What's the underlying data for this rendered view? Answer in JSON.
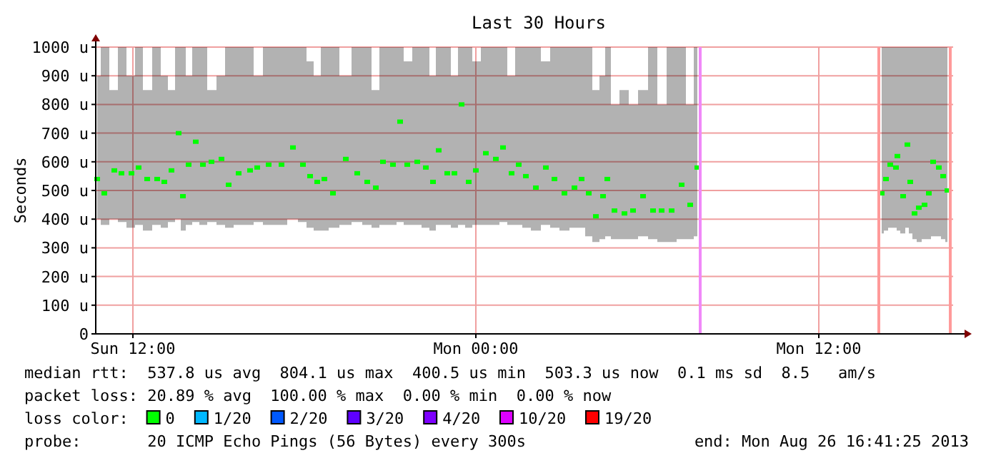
{
  "chart_data": {
    "type": "scatter",
    "title": "Last 30 Hours",
    "ylabel": "Seconds",
    "legend_title": "loss color:",
    "legend": "bottom",
    "grid": true,
    "marker": "square",
    "xlim": [
      "2013-08-25T10:42",
      "2013-08-26T16:42"
    ],
    "xticks": [
      {
        "value": "2013-08-25T12:00",
        "label": "Sun 12:00"
      },
      {
        "value": "2013-08-26T00:00",
        "label": "Mon 00:00"
      },
      {
        "value": "2013-08-26T12:00",
        "label": "Mon 12:00"
      }
    ],
    "ylim": [
      0,
      1000
    ],
    "yticks": [
      0,
      {
        "value": 100,
        "label": "100 u"
      },
      {
        "value": 200,
        "label": "200 u"
      },
      {
        "value": 300,
        "label": "300 u"
      },
      {
        "value": 400,
        "label": "400 u"
      },
      {
        "value": 500,
        "label": "500 u"
      },
      {
        "value": 600,
        "label": "600 u"
      },
      {
        "value": 700,
        "label": "700 u"
      },
      {
        "value": 800,
        "label": "800 u"
      },
      {
        "value": 900,
        "label": "900 u"
      },
      {
        "value": 1000,
        "label": "1000 u"
      }
    ],
    "series": [
      {
        "name": "0",
        "color": "#00ff00",
        "x": [
          "2013-08-25T10:45",
          "2013-08-25T11:00",
          "2013-08-25T11:21",
          "2013-08-25T11:36",
          "2013-08-25T11:57",
          "2013-08-25T12:12",
          "2013-08-25T12:30",
          "2013-08-25T12:51",
          "2013-08-25T13:06",
          "2013-08-25T13:21",
          "2013-08-25T13:36",
          "2013-08-25T13:45",
          "2013-08-25T13:57",
          "2013-08-25T14:12",
          "2013-08-25T14:27",
          "2013-08-25T14:45",
          "2013-08-25T15:06",
          "2013-08-25T15:21",
          "2013-08-25T15:42",
          "2013-08-25T16:06",
          "2013-08-25T16:21",
          "2013-08-25T16:45",
          "2013-08-25T17:12",
          "2013-08-25T17:36",
          "2013-08-25T17:57",
          "2013-08-25T18:12",
          "2013-08-25T18:27",
          "2013-08-25T18:42",
          "2013-08-25T19:00",
          "2013-08-25T19:27",
          "2013-08-25T19:51",
          "2013-08-25T20:12",
          "2013-08-25T20:30",
          "2013-08-25T20:45",
          "2013-08-25T21:06",
          "2013-08-25T21:21",
          "2013-08-25T21:36",
          "2013-08-25T21:57",
          "2013-08-25T22:15",
          "2013-08-25T22:30",
          "2013-08-25T22:42",
          "2013-08-25T23:00",
          "2013-08-25T23:15",
          "2013-08-25T23:30",
          "2013-08-25T23:45",
          "2013-08-26T00:00",
          "2013-08-26T00:21",
          "2013-08-26T00:42",
          "2013-08-26T00:57",
          "2013-08-26T01:15",
          "2013-08-26T01:30",
          "2013-08-26T01:45",
          "2013-08-26T02:06",
          "2013-08-26T02:27",
          "2013-08-26T02:45",
          "2013-08-26T03:06",
          "2013-08-26T03:27",
          "2013-08-26T03:42",
          "2013-08-26T03:57",
          "2013-08-26T04:12",
          "2013-08-26T04:27",
          "2013-08-26T04:36",
          "2013-08-26T04:51",
          "2013-08-26T05:12",
          "2013-08-26T05:30",
          "2013-08-26T05:51",
          "2013-08-26T06:12",
          "2013-08-26T06:30",
          "2013-08-26T06:51",
          "2013-08-26T07:12",
          "2013-08-26T07:30",
          "2013-08-26T07:45",
          "2013-08-26T07:51",
          "2013-08-26T14:06",
          "2013-08-26T14:12",
          "2013-08-26T14:21",
          "2013-08-26T14:30",
          "2013-08-26T14:42",
          "2013-08-26T14:45",
          "2013-08-26T14:57",
          "2013-08-26T15:06",
          "2013-08-26T15:12",
          "2013-08-26T15:21",
          "2013-08-26T15:30",
          "2013-08-26T15:42",
          "2013-08-26T15:51",
          "2013-08-26T16:00",
          "2013-08-26T16:12",
          "2013-08-26T16:21",
          "2013-08-26T16:30"
        ],
        "values": [
          540,
          490,
          570,
          560,
          560,
          580,
          540,
          540,
          530,
          570,
          700,
          480,
          590,
          670,
          590,
          600,
          610,
          520,
          560,
          570,
          580,
          590,
          590,
          650,
          590,
          550,
          530,
          540,
          490,
          610,
          560,
          530,
          510,
          600,
          590,
          740,
          590,
          600,
          580,
          530,
          640,
          560,
          560,
          800,
          530,
          570,
          630,
          610,
          650,
          560,
          590,
          550,
          510,
          580,
          540,
          490,
          510,
          540,
          490,
          410,
          480,
          540,
          430,
          420,
          430,
          480,
          430,
          430,
          430,
          520,
          450,
          580,
          null,
          null,
          490,
          540,
          590,
          580,
          620,
          480,
          660,
          530,
          420,
          440,
          450,
          490,
          600,
          580,
          550,
          500
        ],
        "lower": [
          400,
          380,
          400,
          390,
          370,
          380,
          360,
          380,
          370,
          390,
          400,
          360,
          380,
          390,
          380,
          390,
          380,
          370,
          380,
          380,
          390,
          380,
          380,
          400,
          390,
          370,
          360,
          360,
          370,
          380,
          390,
          380,
          370,
          380,
          380,
          390,
          380,
          380,
          370,
          360,
          380,
          380,
          370,
          380,
          370,
          380,
          380,
          380,
          390,
          380,
          380,
          370,
          360,
          380,
          370,
          360,
          370,
          370,
          340,
          320,
          330,
          340,
          330,
          330,
          330,
          340,
          330,
          320,
          320,
          330,
          330,
          340,
          null,
          null,
          350,
          360,
          370,
          370,
          360,
          350,
          370,
          350,
          330,
          320,
          330,
          330,
          340,
          340,
          330,
          320
        ],
        "upper": [
          900,
          1000,
          850,
          1000,
          900,
          1000,
          850,
          1000,
          900,
          850,
          1000,
          1000,
          900,
          1000,
          1000,
          850,
          900,
          1000,
          1000,
          1000,
          900,
          1000,
          1000,
          1000,
          1000,
          950,
          900,
          1000,
          1000,
          900,
          1000,
          1000,
          850,
          1000,
          1000,
          1000,
          950,
          1000,
          1000,
          900,
          1000,
          1000,
          900,
          1000,
          1000,
          950,
          1000,
          1000,
          1000,
          900,
          1000,
          1000,
          1000,
          950,
          1000,
          1000,
          1000,
          1000,
          1000,
          850,
          900,
          1000,
          800,
          850,
          800,
          850,
          1000,
          800,
          1000,
          1000,
          800,
          1000,
          null,
          null,
          1000,
          1000,
          1000,
          1000,
          1000,
          1000,
          1000,
          1000,
          1000,
          1000,
          1000,
          1000,
          1000,
          1000,
          1000,
          1000
        ]
      },
      {
        "name": "1/20",
        "color": "#00b8ff"
      },
      {
        "name": "2/20",
        "color": "#0059ff"
      },
      {
        "name": "3/20",
        "color": "#5e00ff"
      },
      {
        "name": "4/20",
        "color": "#7e00ff"
      },
      {
        "name": "10/20",
        "color": "#dd00ff"
      },
      {
        "name": "19/20",
        "color": "#ff0000"
      }
    ],
    "ref_lines": [
      {
        "axis": "x",
        "value": "2013-08-26T07:51",
        "color": "#f088f8"
      },
      {
        "axis": "x",
        "value": "2013-08-26T14:06",
        "color": "#ff9a9a"
      },
      {
        "axis": "x",
        "value": "2013-08-26T16:36",
        "color": "#ff9a9a"
      }
    ],
    "annotations": [
      "median rtt:  537.8 us avg  804.1 us max  400.5 us min  503.3 us now  0.1 ms sd  8.5   am/s",
      "packet loss: 20.89 % avg  100.00 % max  0.00 % min  0.00 % now",
      "probe:       20 ICMP Echo Pings (56 Bytes) every 300s",
      "end: Mon Aug 26 16:41:25 2013"
    ]
  }
}
